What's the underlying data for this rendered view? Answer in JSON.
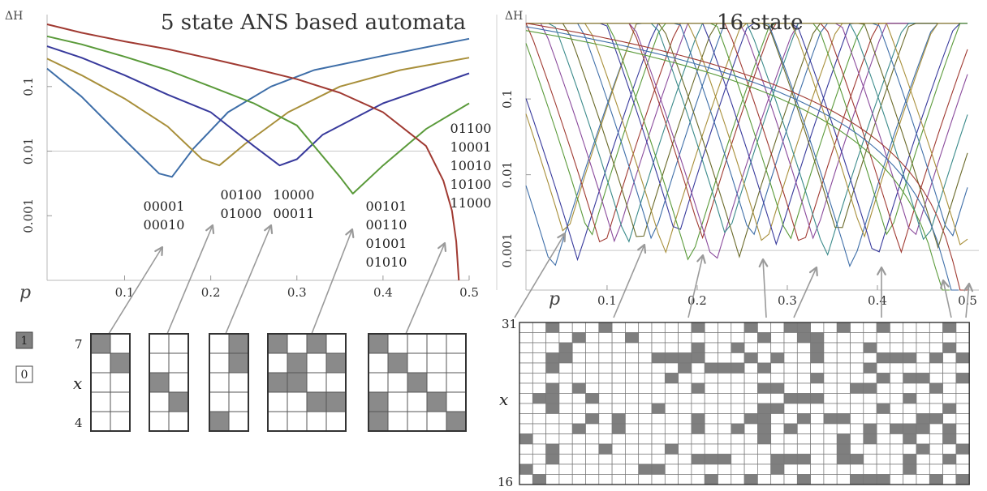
{
  "chart_data": [
    {
      "type": "line",
      "title": "5 state ANS based automata",
      "ylabel": "ΔH",
      "xlabel": "p",
      "y_scale": "log",
      "xlim": [
        0.01,
        0.5
      ],
      "ylim": [
        0.0001,
        1.3
      ],
      "x_ticks": [
        "0.1",
        "0.2",
        "0.3",
        "0.4",
        "0.5"
      ],
      "x_tick_values": [
        0.1,
        0.2,
        0.3,
        0.4,
        0.5
      ],
      "y_ticks": [
        "0.001",
        "0.01",
        "0.1"
      ],
      "y_tick_values": [
        0.001,
        0.01,
        0.1
      ],
      "reference_line": 0.01,
      "series": [
        {
          "color": "#3e6ea8",
          "values": [
            [
              0.01,
              0.19
            ],
            [
              0.05,
              0.07
            ],
            [
              0.1,
              0.015
            ],
            [
              0.14,
              0.0045
            ],
            [
              0.155,
              0.004
            ],
            [
              0.18,
              0.011
            ],
            [
              0.22,
              0.04
            ],
            [
              0.27,
              0.1
            ],
            [
              0.32,
              0.18
            ],
            [
              0.4,
              0.3
            ],
            [
              0.5,
              0.55
            ]
          ]
        },
        {
          "color": "#a88f3a",
          "values": [
            [
              0.01,
              0.27
            ],
            [
              0.05,
              0.15
            ],
            [
              0.1,
              0.065
            ],
            [
              0.15,
              0.024
            ],
            [
              0.19,
              0.0075
            ],
            [
              0.21,
              0.006
            ],
            [
              0.24,
              0.013
            ],
            [
              0.29,
              0.04
            ],
            [
              0.35,
              0.1
            ],
            [
              0.42,
              0.18
            ],
            [
              0.5,
              0.28
            ]
          ]
        },
        {
          "color": "#383a9c",
          "values": [
            [
              0.01,
              0.42
            ],
            [
              0.05,
              0.28
            ],
            [
              0.1,
              0.15
            ],
            [
              0.15,
              0.075
            ],
            [
              0.2,
              0.04
            ],
            [
              0.25,
              0.012
            ],
            [
              0.28,
              0.006
            ],
            [
              0.3,
              0.0075
            ],
            [
              0.33,
              0.018
            ],
            [
              0.4,
              0.055
            ],
            [
              0.5,
              0.16
            ]
          ]
        },
        {
          "color": "#5a9a3a",
          "values": [
            [
              0.01,
              0.6
            ],
            [
              0.05,
              0.45
            ],
            [
              0.1,
              0.29
            ],
            [
              0.15,
              0.18
            ],
            [
              0.2,
              0.1
            ],
            [
              0.25,
              0.055
            ],
            [
              0.3,
              0.025
            ],
            [
              0.35,
              0.004
            ],
            [
              0.365,
              0.0022
            ],
            [
              0.4,
              0.006
            ],
            [
              0.45,
              0.022
            ],
            [
              0.5,
              0.055
            ]
          ]
        },
        {
          "color": "#a03a32",
          "values": [
            [
              0.01,
              0.92
            ],
            [
              0.05,
              0.68
            ],
            [
              0.1,
              0.5
            ],
            [
              0.15,
              0.38
            ],
            [
              0.2,
              0.27
            ],
            [
              0.25,
              0.19
            ],
            [
              0.3,
              0.13
            ],
            [
              0.35,
              0.08
            ],
            [
              0.4,
              0.04
            ],
            [
              0.45,
              0.012
            ],
            [
              0.47,
              0.0035
            ],
            [
              0.48,
              0.0012
            ],
            [
              0.485,
              0.0004
            ],
            [
              0.488,
              0.0001
            ]
          ]
        }
      ],
      "annotations": [
        {
          "lines": [
            "00001",
            "00010"
          ]
        },
        {
          "lines": [
            "00100",
            "01000"
          ]
        },
        {
          "lines": [
            "10000",
            "00011"
          ]
        },
        {
          "lines": [
            "00101",
            "00110",
            "01001",
            "01010"
          ]
        },
        {
          "lines": [
            "01100",
            "10001",
            "10010",
            "10100",
            "11000"
          ]
        }
      ],
      "arrow_targets_p": [
        0.155,
        0.21,
        0.28,
        0.365,
        0.485
      ]
    },
    {
      "type": "line",
      "title": "16 state",
      "ylabel": "ΔH",
      "xlabel": "p",
      "y_scale": "log",
      "xlim": [
        0.01,
        0.5
      ],
      "ylim": [
        0.0003,
        1.3
      ],
      "x_ticks": [
        "0.1",
        "0.2",
        "0.3",
        "0.4",
        "0.5"
      ],
      "x_tick_values": [
        0.1,
        0.2,
        0.3,
        0.4,
        0.5
      ],
      "y_ticks": [
        "0.001",
        "0.01",
        "0.1"
      ],
      "y_tick_values": [
        0.001,
        0.01,
        0.1
      ],
      "reference_line": 0.001,
      "series_count": 16,
      "colors": [
        "#3e6ea8",
        "#a88f3a",
        "#383a9c",
        "#5a9a3a",
        "#a03a32",
        "#8a4a9c",
        "#3a8a8a",
        "#6a6a2a"
      ],
      "arrow_targets_p": [
        0.05,
        0.12,
        0.19,
        0.25,
        0.32,
        0.39,
        0.46,
        0.5
      ]
    }
  ],
  "legend": {
    "filled": "1",
    "empty": "0"
  },
  "left_grid": {
    "top_label": "7",
    "mid_label": "x",
    "bottom_label": "4",
    "patterns": [
      [
        [
          1,
          0
        ],
        [
          0,
          1
        ],
        [
          0,
          0
        ],
        [
          0,
          0
        ],
        [
          0,
          0
        ]
      ],
      [
        [
          0,
          0
        ],
        [
          0,
          0
        ],
        [
          1,
          0
        ],
        [
          0,
          1
        ],
        [
          0,
          0
        ]
      ],
      [
        [
          0,
          1
        ],
        [
          0,
          1
        ],
        [
          0,
          0
        ],
        [
          0,
          0
        ],
        [
          1,
          0
        ]
      ],
      [
        [
          1,
          0,
          1,
          0
        ],
        [
          0,
          1,
          0,
          1
        ],
        [
          1,
          1,
          0,
          0
        ],
        [
          0,
          0,
          1,
          1
        ],
        [
          0,
          0,
          0,
          0
        ]
      ],
      [
        [
          1,
          0,
          0,
          0,
          0
        ],
        [
          0,
          1,
          0,
          0,
          0
        ],
        [
          0,
          0,
          1,
          0,
          0
        ],
        [
          1,
          0,
          0,
          1,
          0
        ],
        [
          1,
          0,
          0,
          0,
          1
        ]
      ]
    ]
  },
  "right_grid": {
    "top_label": "31",
    "mid_label": "x",
    "bottom_label": "16",
    "columns": 34,
    "rows": 16
  }
}
